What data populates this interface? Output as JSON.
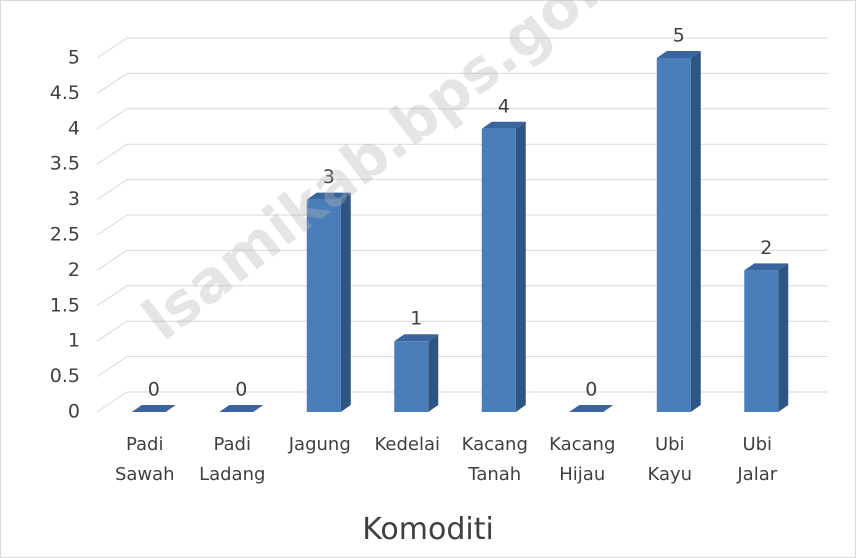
{
  "chart_data": {
    "type": "bar3d",
    "x_label": "Komoditi",
    "watermark": "lsamikab.bps.go.id",
    "categories": [
      "Padi Sawah",
      "Padi Ladang",
      "Jagung",
      "Kedelai",
      "Kacang Tanah",
      "Kacang Hijau",
      "Ubi Kayu",
      "Ubi Jalar"
    ],
    "values": [
      0,
      0,
      3,
      1,
      4,
      0,
      5,
      2
    ],
    "color": "#4a7ebb",
    "ylim": [
      0,
      5
    ],
    "yticks": [
      0,
      0.5,
      1,
      1.5,
      2,
      2.5,
      3,
      3.5,
      4,
      4.5,
      5
    ],
    "grid": true
  }
}
